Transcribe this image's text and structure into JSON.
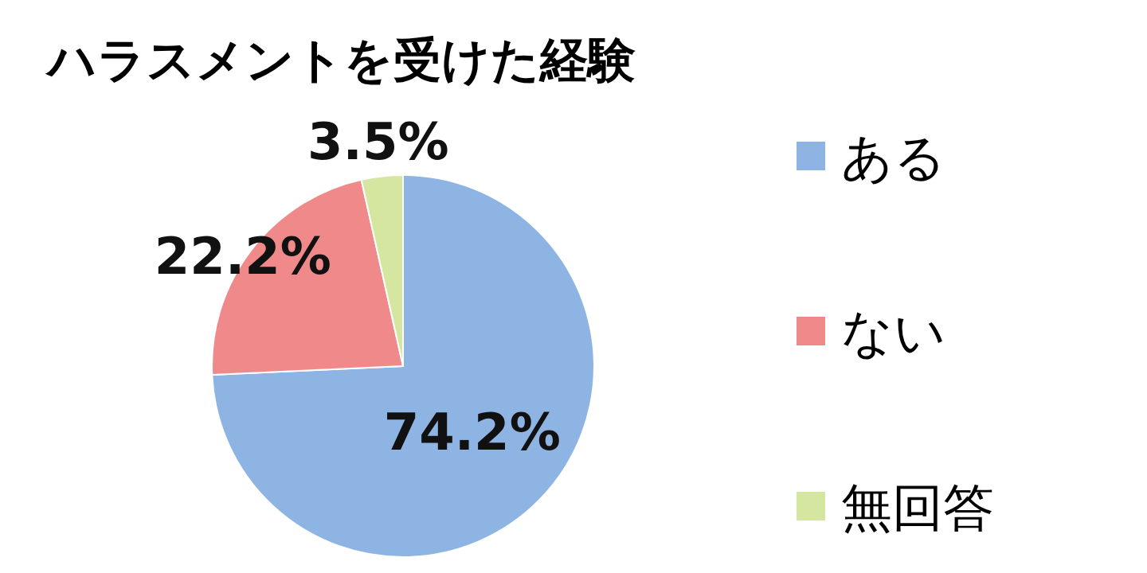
{
  "chart_data": {
    "type": "pie",
    "title": "ハラスメントを受けた経験",
    "categories": [
      "ある",
      "ない",
      "無回答"
    ],
    "values": [
      74.2,
      22.2,
      3.5
    ],
    "colors": [
      "#8db4e2",
      "#f08a8a",
      "#d4e6a0"
    ],
    "value_labels": [
      "74.2%",
      "22.2%",
      "3.5%"
    ],
    "legend": "right"
  }
}
